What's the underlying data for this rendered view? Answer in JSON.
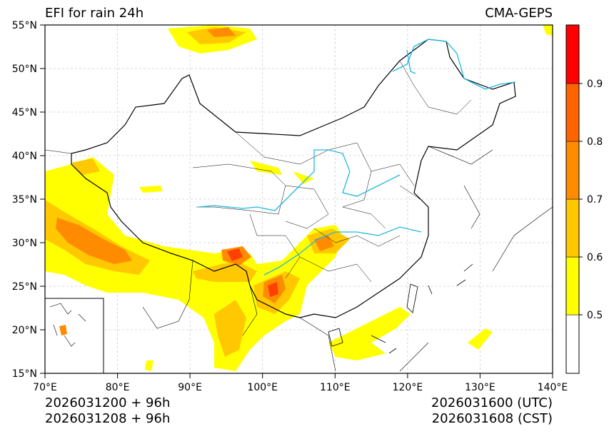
{
  "title_left": "EFI for rain 24h",
  "title_right": "CMA-GEPS",
  "axes": {
    "lon_ticks": [
      "70°E",
      "80°E",
      "90°E",
      "100°E",
      "110°E",
      "120°E",
      "130°E",
      "140°E"
    ],
    "lat_ticks": [
      "55°N",
      "50°N",
      "45°N",
      "40°N",
      "35°N",
      "30°N",
      "25°N",
      "20°N",
      "15°N"
    ],
    "lon_range": [
      70,
      140
    ],
    "lat_range": [
      15,
      55
    ]
  },
  "colorbar": {
    "levels": [
      0.4,
      0.5,
      0.6,
      0.7,
      0.8,
      0.9,
      1.0
    ],
    "tick_labels": [
      "0.5",
      "0.6",
      "0.7",
      "0.8",
      "0.9"
    ],
    "colors": [
      "#ffffff",
      "#ffff00",
      "#ffc800",
      "#ff8c00",
      "#ff6400",
      "#ff0000"
    ]
  },
  "footer": {
    "init_utc": "2026031200 + 96h",
    "init_cst": "2026031208 + 96h",
    "valid_utc": "2026031600 (UTC)",
    "valid_cst": "2026031608 (CST)"
  },
  "colors": {
    "river": "#1fb8e0",
    "grid": "#cccccc",
    "border": "#000000"
  }
}
